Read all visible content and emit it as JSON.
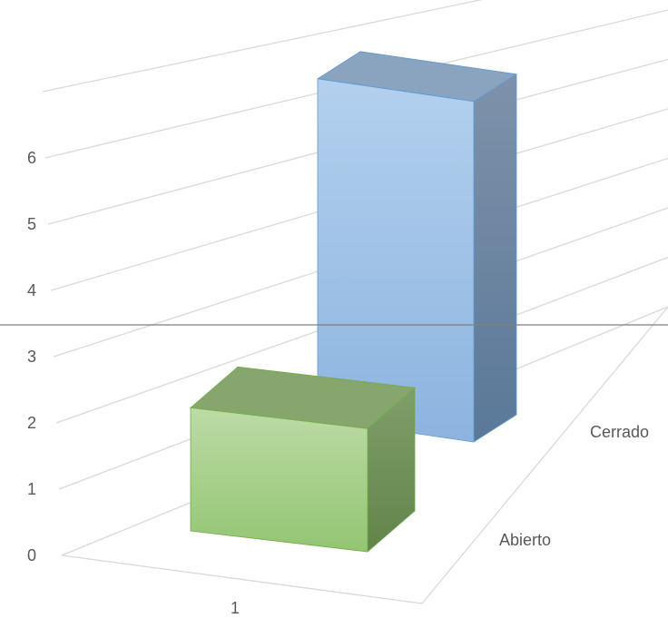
{
  "chart_data": {
    "type": "bar",
    "categories": [
      "1"
    ],
    "series": [
      {
        "name": "Abierto",
        "values": [
          2.3
        ]
      },
      {
        "name": "Cerrado",
        "values": [
          5.6
        ]
      }
    ],
    "ylim": [
      0,
      7
    ],
    "y_ticks": [
      "0",
      "1",
      "2",
      "3",
      "4",
      "5",
      "6"
    ],
    "grid": true,
    "colors": {
      "Abierto": "#a9d18e",
      "Cerrado": "#9dc3e6",
      "gridline": "#d9d9d9",
      "axis_line": "#7f7f7f"
    }
  }
}
